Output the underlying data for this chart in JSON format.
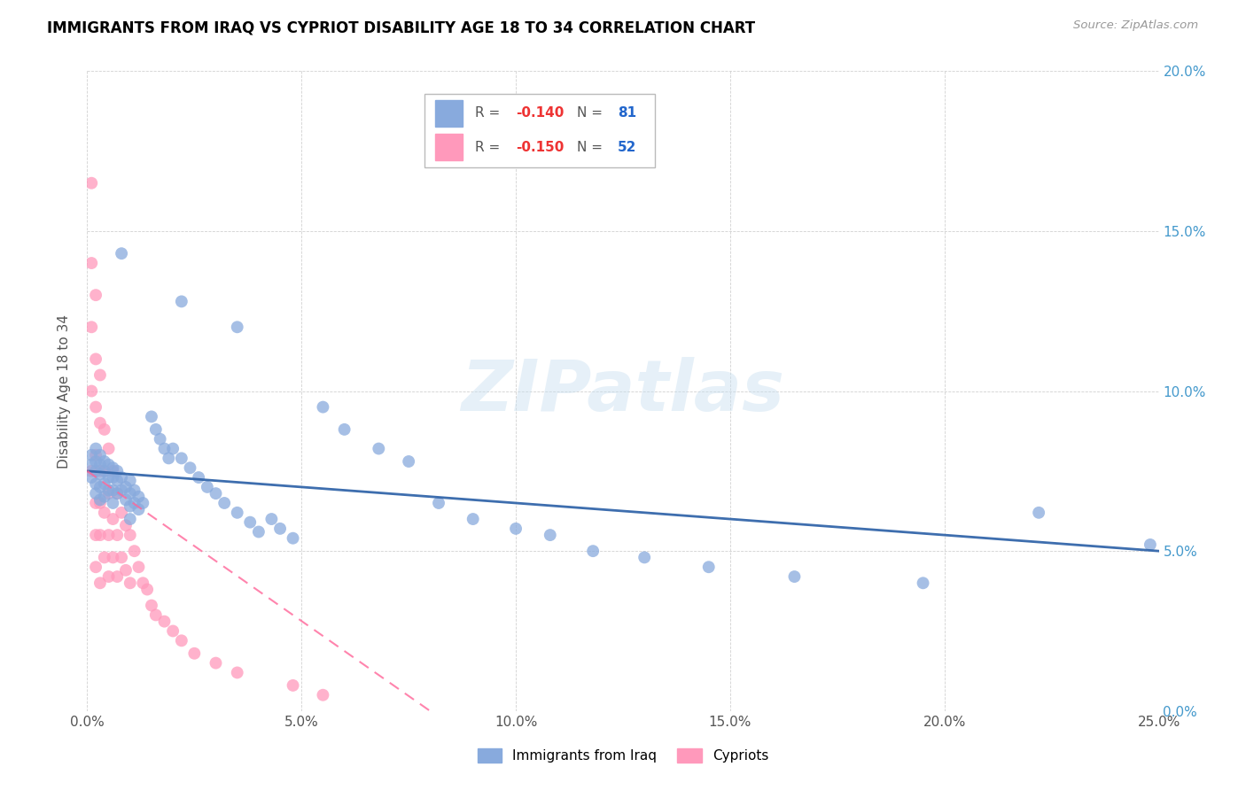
{
  "title": "IMMIGRANTS FROM IRAQ VS CYPRIOT DISABILITY AGE 18 TO 34 CORRELATION CHART",
  "source": "Source: ZipAtlas.com",
  "ylabel": "Disability Age 18 to 34",
  "xlim": [
    0,
    0.25
  ],
  "ylim": [
    0,
    0.2
  ],
  "blue_color": "#88AADD",
  "pink_color": "#FF99BB",
  "blue_line_color": "#3366AA",
  "pink_line_color": "#FF6699",
  "legend_label_blue": "Immigrants from Iraq",
  "legend_label_pink": "Cypriots",
  "watermark_text": "ZIPatlas",
  "right_ytick_color": "#4499CC"
}
